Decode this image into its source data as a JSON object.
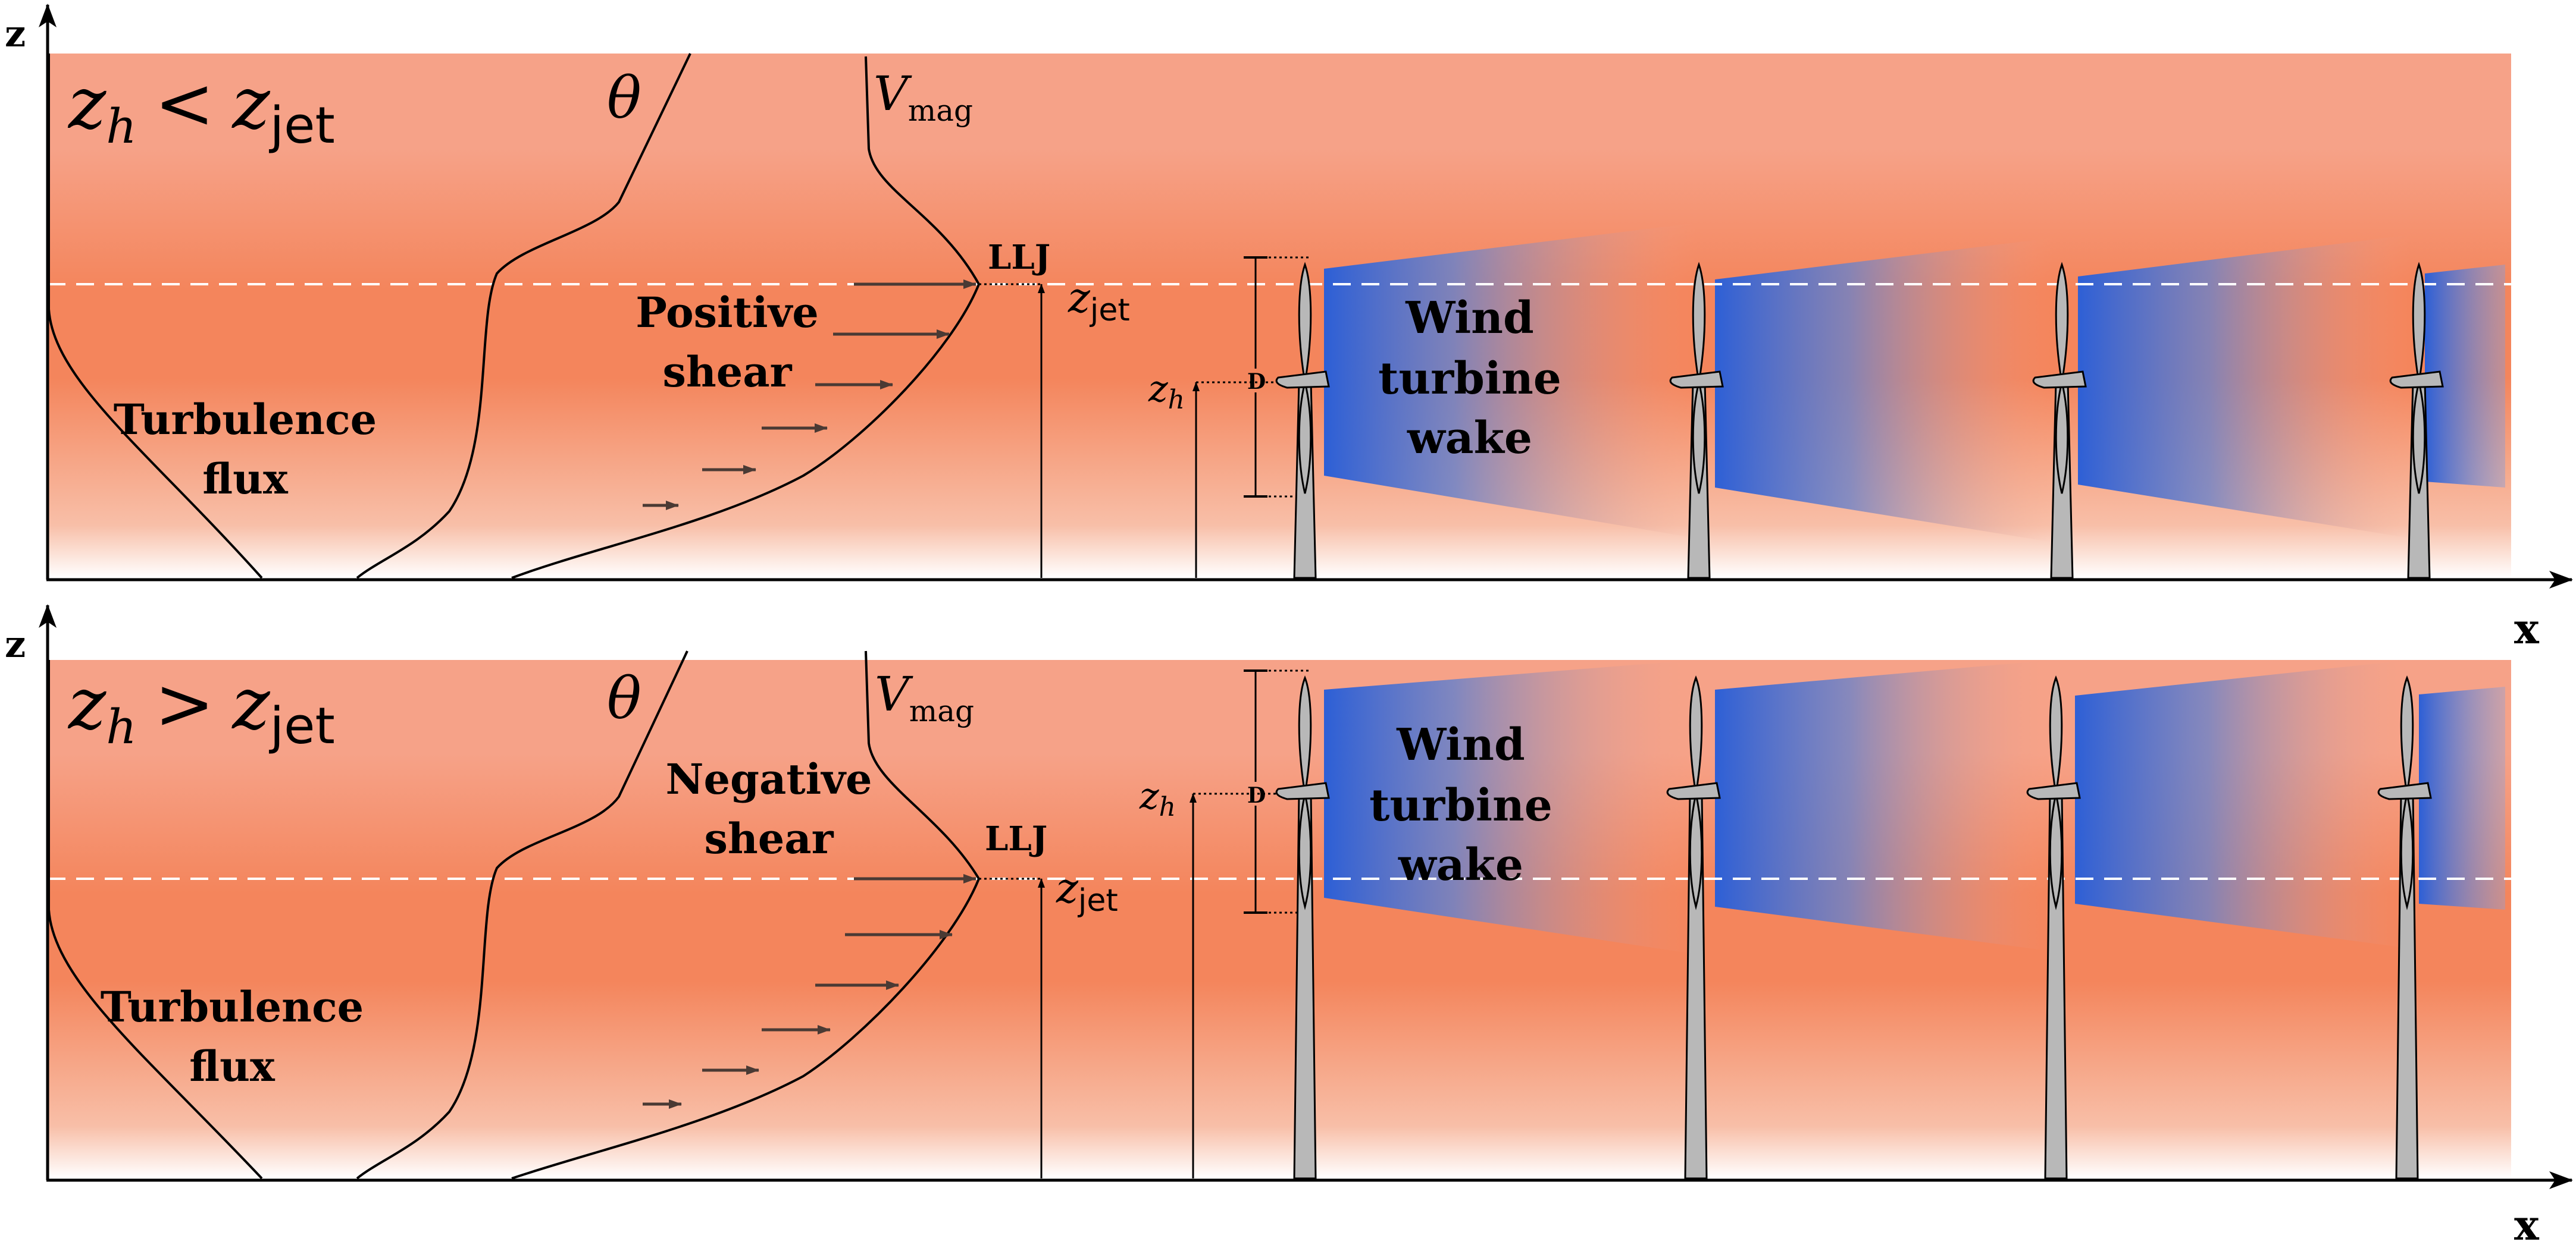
{
  "colors": {
    "air_top": "#f6a288",
    "air_jet": "#f4855c",
    "air_ground": "#ffffff",
    "wake_core": "#2d5fd6",
    "tower": "#b8b8b8",
    "line": "#000000",
    "arrow": "#4a3a34",
    "dashed_line": "#ffffff"
  },
  "axes": {
    "z_label": "z",
    "x_label": "x"
  },
  "panels": [
    {
      "id": "top",
      "condition": {
        "lhs": "z",
        "lhs_sub": "h",
        "op": "<",
        "rhs": "z",
        "rhs_sub": "jet"
      },
      "theta_label": "θ",
      "vmag_label": "V",
      "vmag_sub": "mag",
      "llj_label": "LLJ",
      "zjet_label": "z",
      "zjet_sub": "jet",
      "zh_label": "z",
      "zh_sub": "h",
      "d_label": "D",
      "shear_line1": "Positive",
      "shear_line2": "shear",
      "flux_line1": "Turbulence",
      "flux_line2": "flux",
      "wake_line1": "Wind",
      "wake_line2": "turbine",
      "wake_line3": "wake"
    },
    {
      "id": "bottom",
      "condition": {
        "lhs": "z",
        "lhs_sub": "h",
        "op": ">",
        "rhs": "z",
        "rhs_sub": "jet"
      },
      "theta_label": "θ",
      "vmag_label": "V",
      "vmag_sub": "mag",
      "llj_label": "LLJ",
      "zjet_label": "z",
      "zjet_sub": "jet",
      "zh_label": "z",
      "zh_sub": "h",
      "d_label": "D",
      "shear_line1": "Negative",
      "shear_line2": "shear",
      "flux_line1": "Turbulence",
      "flux_line2": "flux",
      "wake_line1": "Wind",
      "wake_line2": "turbine",
      "wake_line3": "wake"
    }
  ]
}
